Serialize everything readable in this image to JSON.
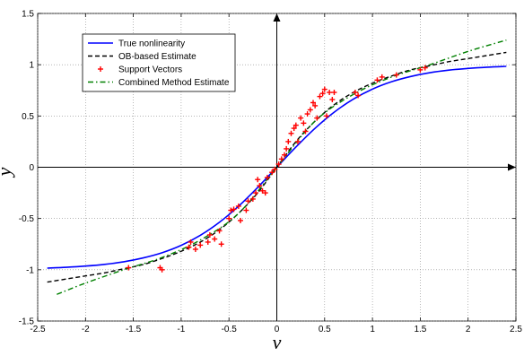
{
  "chart_data": {
    "type": "line",
    "xlabel": "v",
    "ylabel": "y",
    "xlim": [
      -2.5,
      2.5
    ],
    "ylim": [
      -1.5,
      1.5
    ],
    "xticks": [
      -2.5,
      -2,
      -1.5,
      -1,
      -0.5,
      0,
      0.5,
      1,
      1.5,
      2,
      2.5
    ],
    "yticks": [
      -1.5,
      -1,
      -0.5,
      0,
      0.5,
      1,
      1.5
    ],
    "xtick_labels": [
      "-2.5",
      "-2",
      "-1.5",
      "-1",
      "-0.5",
      "0",
      "0.5",
      "1",
      "1.5",
      "2",
      "2.5"
    ],
    "ytick_labels": [
      "-1.5",
      "-1",
      "-0.5",
      "0",
      "0.5",
      "1",
      "1.5"
    ],
    "grid": true,
    "legend_position": "top-left",
    "series": [
      {
        "name": "True nonlinearity",
        "style": "solid",
        "color": "#0000ff",
        "x": [
          -2.4,
          -2.2,
          -2.0,
          -1.8,
          -1.6,
          -1.4,
          -1.2,
          -1.0,
          -0.8,
          -0.6,
          -0.4,
          -0.2,
          0.0,
          0.2,
          0.4,
          0.6,
          0.8,
          1.0,
          1.2,
          1.4,
          1.6,
          1.8,
          2.0,
          2.2,
          2.4
        ],
        "y": [
          -0.984,
          -0.976,
          -0.964,
          -0.947,
          -0.922,
          -0.885,
          -0.834,
          -0.762,
          -0.664,
          -0.537,
          -0.38,
          -0.197,
          0.0,
          0.197,
          0.38,
          0.537,
          0.664,
          0.762,
          0.834,
          0.885,
          0.922,
          0.947,
          0.964,
          0.976,
          0.984
        ]
      },
      {
        "name": "OB-based Estimate",
        "style": "dashed",
        "color": "#000000",
        "x": [
          -2.4,
          -2.2,
          -2.0,
          -1.8,
          -1.6,
          -1.4,
          -1.2,
          -1.0,
          -0.8,
          -0.6,
          -0.4,
          -0.2,
          0.0,
          0.2,
          0.4,
          0.6,
          0.8,
          1.0,
          1.2,
          1.4,
          1.6,
          1.8,
          2.0,
          2.2,
          2.4
        ],
        "y": [
          -1.12,
          -1.09,
          -1.06,
          -1.03,
          -0.99,
          -0.95,
          -0.89,
          -0.82,
          -0.73,
          -0.61,
          -0.45,
          -0.25,
          0.0,
          0.25,
          0.45,
          0.61,
          0.73,
          0.82,
          0.89,
          0.95,
          0.99,
          1.03,
          1.06,
          1.09,
          1.12
        ]
      },
      {
        "name": "Combined Method Estimate",
        "style": "dashdot",
        "color": "#008000",
        "x": [
          -2.3,
          -2.0,
          -1.6,
          -1.2,
          -0.8,
          -0.4,
          0.0,
          0.4,
          0.8,
          1.2,
          1.6,
          2.0,
          2.4
        ],
        "y": [
          -1.24,
          -1.13,
          -1.0,
          -0.88,
          -0.71,
          -0.45,
          0.0,
          0.45,
          0.71,
          0.88,
          1.0,
          1.13,
          1.24
        ]
      },
      {
        "name": "Support Vectors",
        "style": "markers",
        "marker": "+",
        "color": "#ff0000",
        "x": [
          -1.55,
          -1.22,
          -1.2,
          -0.92,
          -0.9,
          -0.85,
          -0.8,
          -0.72,
          -0.7,
          -0.65,
          -0.6,
          -0.58,
          -0.5,
          -0.48,
          -0.45,
          -0.4,
          -0.38,
          -0.32,
          -0.3,
          -0.25,
          -0.22,
          -0.2,
          -0.18,
          -0.15,
          -0.12,
          -0.1,
          -0.05,
          -0.02,
          0.02,
          0.05,
          0.08,
          0.1,
          0.12,
          0.15,
          0.18,
          0.2,
          0.22,
          0.25,
          0.28,
          0.3,
          0.32,
          0.35,
          0.38,
          0.4,
          0.42,
          0.45,
          0.48,
          0.5,
          0.52,
          0.55,
          0.58,
          0.6,
          0.82,
          0.85,
          1.05,
          1.1,
          1.25,
          1.5,
          1.55
        ],
        "y": [
          -0.98,
          -0.98,
          -1.0,
          -0.78,
          -0.73,
          -0.8,
          -0.76,
          -0.73,
          -0.66,
          -0.7,
          -0.62,
          -0.75,
          -0.5,
          -0.42,
          -0.41,
          -0.38,
          -0.52,
          -0.42,
          -0.33,
          -0.31,
          -0.25,
          -0.12,
          -0.18,
          -0.23,
          -0.25,
          -0.1,
          -0.05,
          -0.02,
          0.03,
          0.08,
          0.12,
          0.18,
          0.25,
          0.33,
          0.38,
          0.41,
          0.25,
          0.48,
          0.43,
          0.35,
          0.52,
          0.56,
          0.63,
          0.6,
          0.48,
          0.69,
          0.72,
          0.76,
          0.5,
          0.73,
          0.66,
          0.73,
          0.73,
          0.7,
          0.85,
          0.88,
          0.9,
          0.95,
          0.97
        ]
      }
    ]
  }
}
